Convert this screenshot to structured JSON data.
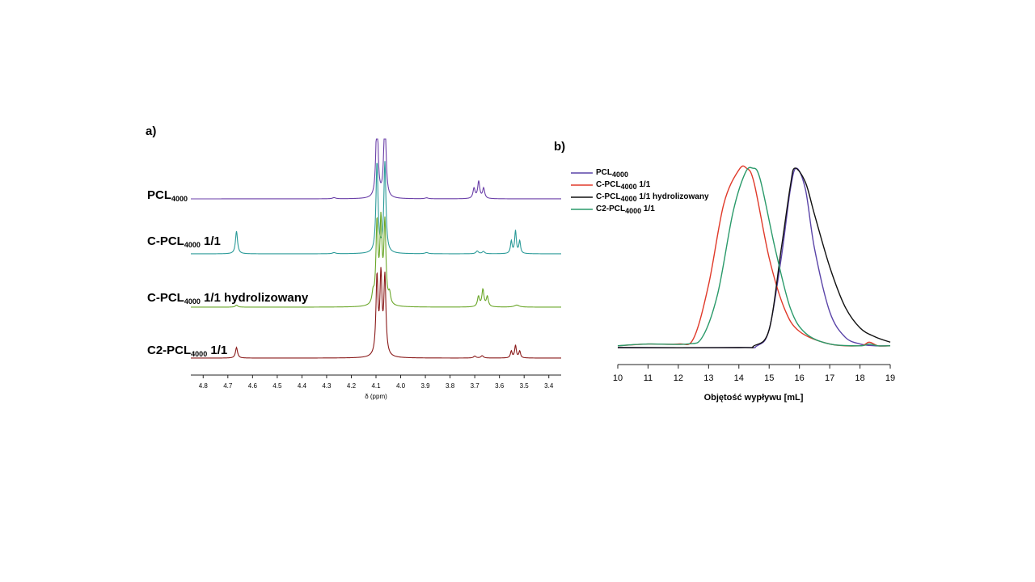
{
  "chart_data": [
    {
      "panel": "a)",
      "type": "line",
      "xlabel": "δ (ppm)",
      "xlim": [
        4.85,
        3.35
      ],
      "x_ticks": [
        "4.8",
        "4.7",
        "4.6",
        "4.5",
        "4.4",
        "4.3",
        "4.2",
        "4.1",
        "4.0",
        "3.9",
        "3.8",
        "3.7",
        "3.6",
        "3.5",
        "3.4"
      ],
      "series": [
        {
          "name": "PCL",
          "sub": "4000",
          "suffix": "",
          "color": "#6a3fa8",
          "peaks": [
            {
              "x": 4.27,
              "h": 0.05,
              "w": 0.008
            },
            {
              "x": 4.096,
              "h": 4.0,
              "w": 0.005
            },
            {
              "x": 4.064,
              "h": 4.0,
              "w": 0.005
            },
            {
              "x": 3.895,
              "h": 0.04,
              "w": 0.008
            },
            {
              "x": 3.703,
              "h": 0.45,
              "w": 0.005
            },
            {
              "x": 3.684,
              "h": 0.75,
              "w": 0.005
            },
            {
              "x": 3.664,
              "h": 0.45,
              "w": 0.005
            }
          ]
        },
        {
          "name": "C-PCL",
          "sub": "4000",
          "suffix": " 1/1",
          "color": "#2a9a98",
          "peaks": [
            {
              "x": 4.665,
              "h": 1.0,
              "w": 0.005
            },
            {
              "x": 4.27,
              "h": 0.05,
              "w": 0.008
            },
            {
              "x": 4.096,
              "h": 4.0,
              "w": 0.005
            },
            {
              "x": 4.064,
              "h": 4.0,
              "w": 0.005
            },
            {
              "x": 3.895,
              "h": 0.05,
              "w": 0.008
            },
            {
              "x": 3.69,
              "h": 0.12,
              "w": 0.006
            },
            {
              "x": 3.665,
              "h": 0.1,
              "w": 0.006
            },
            {
              "x": 3.552,
              "h": 0.55,
              "w": 0.004
            },
            {
              "x": 3.535,
              "h": 1.0,
              "w": 0.004
            },
            {
              "x": 3.518,
              "h": 0.55,
              "w": 0.004
            }
          ]
        },
        {
          "name": "C-PCL",
          "sub": "4000",
          "suffix": " 1/1 hydrolizowany",
          "color": "#6aa628",
          "peaks": [
            {
              "x": 4.665,
              "h": 0.1,
              "w": 0.006
            },
            {
              "x": 4.112,
              "h": 0.5,
              "w": 0.005
            },
            {
              "x": 4.096,
              "h": 4.0,
              "w": 0.005
            },
            {
              "x": 4.08,
              "h": 4.0,
              "w": 0.005
            },
            {
              "x": 4.064,
              "h": 4.0,
              "w": 0.005
            },
            {
              "x": 4.045,
              "h": 0.5,
              "w": 0.005
            },
            {
              "x": 3.685,
              "h": 0.5,
              "w": 0.005
            },
            {
              "x": 3.667,
              "h": 0.85,
              "w": 0.005
            },
            {
              "x": 3.649,
              "h": 0.5,
              "w": 0.005
            },
            {
              "x": 3.53,
              "h": 0.1,
              "w": 0.012
            }
          ]
        },
        {
          "name": "C2-PCL",
          "sub": "4000",
          "suffix": " 1/1",
          "color": "#8a1a1a",
          "peaks": [
            {
              "x": 4.665,
              "h": 0.55,
              "w": 0.005
            },
            {
              "x": 4.096,
              "h": 4.0,
              "w": 0.005
            },
            {
              "x": 4.08,
              "h": 4.0,
              "w": 0.005
            },
            {
              "x": 4.064,
              "h": 4.0,
              "w": 0.005
            },
            {
              "x": 3.7,
              "h": 0.1,
              "w": 0.006
            },
            {
              "x": 3.67,
              "h": 0.12,
              "w": 0.006
            },
            {
              "x": 3.552,
              "h": 0.35,
              "w": 0.004
            },
            {
              "x": 3.535,
              "h": 0.65,
              "w": 0.004
            },
            {
              "x": 3.518,
              "h": 0.35,
              "w": 0.004
            }
          ]
        }
      ]
    },
    {
      "panel": "b)",
      "type": "line",
      "xlabel": "Objętość wypływu [mL]",
      "xlim": [
        10,
        19
      ],
      "ylim": [
        0,
        1
      ],
      "x_ticks": [
        "10",
        "11",
        "12",
        "13",
        "14",
        "15",
        "16",
        "17",
        "18",
        "19"
      ],
      "legend_position": "top-left",
      "series": [
        {
          "name": "PCL",
          "sub": "4000",
          "suffix": "",
          "color": "#5a44a8",
          "x": [
            10,
            14,
            14.6,
            15.0,
            15.4,
            15.7,
            15.9,
            16.2,
            16.5,
            17.0,
            17.5,
            18.0,
            18.5,
            19
          ],
          "y": [
            0.0,
            0.0,
            0.01,
            0.1,
            0.5,
            0.88,
            1.0,
            0.88,
            0.55,
            0.2,
            0.06,
            0.02,
            0.01,
            0.01
          ]
        },
        {
          "name": "C-PCL",
          "sub": "4000",
          "suffix": " 1/1",
          "color": "#e03a2a",
          "x": [
            10,
            11,
            12,
            12.5,
            13.0,
            13.5,
            14.0,
            14.25,
            14.5,
            15.0,
            15.5,
            16.0,
            17.0,
            18.0,
            18.3,
            18.6,
            19
          ],
          "y": [
            0.01,
            0.02,
            0.02,
            0.05,
            0.35,
            0.8,
            0.99,
            1.0,
            0.92,
            0.5,
            0.22,
            0.09,
            0.02,
            0.01,
            0.03,
            0.01,
            0.01
          ]
        },
        {
          "name": "C-PCL",
          "sub": "4000",
          "suffix": " 1/1 hydrolizowany",
          "color": "#111111",
          "x": [
            10,
            14,
            14.5,
            15.0,
            15.4,
            15.7,
            15.85,
            16.2,
            16.5,
            17.0,
            17.5,
            18.0,
            18.5,
            19
          ],
          "y": [
            0.0,
            0.0,
            0.01,
            0.1,
            0.55,
            0.9,
            1.0,
            0.92,
            0.74,
            0.45,
            0.23,
            0.11,
            0.06,
            0.03
          ]
        },
        {
          "name": "C2-PCL",
          "sub": "4000",
          "suffix": " 1/1",
          "color": "#2a9a6a",
          "x": [
            10,
            11,
            12.3,
            12.8,
            13.3,
            13.8,
            14.2,
            14.45,
            14.7,
            15.2,
            15.7,
            16.2,
            17.0,
            18.0,
            18.3,
            18.6,
            19
          ],
          "y": [
            0.01,
            0.02,
            0.02,
            0.06,
            0.3,
            0.75,
            0.97,
            1.0,
            0.94,
            0.55,
            0.22,
            0.08,
            0.02,
            0.01,
            0.02,
            0.01,
            0.01
          ]
        }
      ]
    }
  ]
}
